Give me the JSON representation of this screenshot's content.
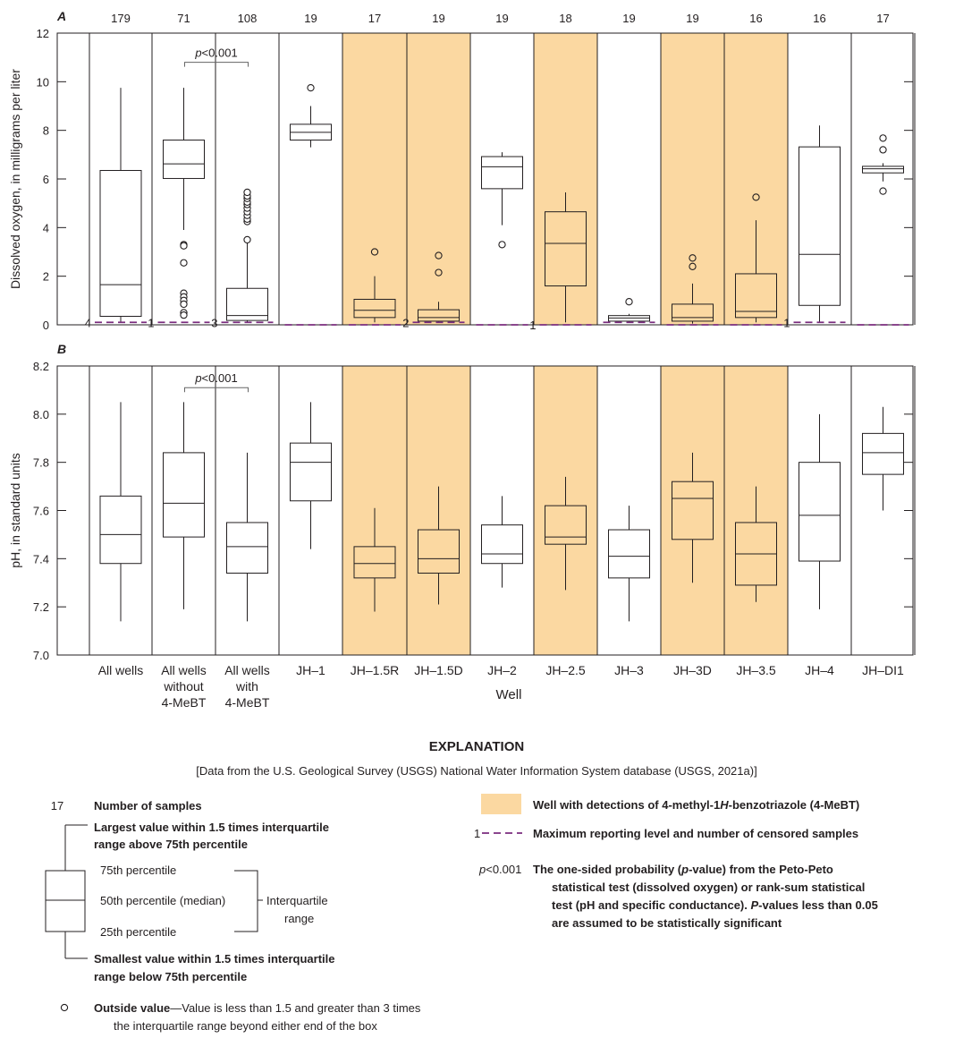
{
  "colors": {
    "detect_fill": "#fbd8a1",
    "reporting_level": "#7b2d7f",
    "box_stroke": "#231f20",
    "frame": "#231f20"
  },
  "chart_data": [
    {
      "panel": "A",
      "type": "box",
      "ylabel": "Dissolved oxygen, in milligrams per liter",
      "ylim": [
        0,
        12
      ],
      "yticks": [
        0,
        2,
        4,
        6,
        8,
        10,
        12
      ],
      "categories": [
        "All wells",
        "All wells without 4-MeBT",
        "All wells with 4-MeBT",
        "JH–1",
        "JH–1.5R",
        "JH–1.5D",
        "JH–2",
        "JH–2.5",
        "JH–3",
        "JH–3D",
        "JH–3.5",
        "JH–4",
        "JH–DI1"
      ],
      "n": [
        "179",
        "71",
        "108",
        "19",
        "17",
        "19",
        "19",
        "18",
        "19",
        "19",
        "16",
        "16",
        "17"
      ],
      "detections": [
        false,
        false,
        false,
        false,
        true,
        true,
        false,
        true,
        false,
        true,
        true,
        false,
        false
      ],
      "boxes": [
        {
          "whisker_low": 0.1,
          "q1": 0.35,
          "median": 1.65,
          "q3": 6.35,
          "whisker_high": 9.75,
          "outliers": []
        },
        {
          "whisker_low": 3.9,
          "q1": 6.02,
          "median": 6.62,
          "q3": 7.6,
          "whisker_high": 9.75,
          "outliers": [
            3.3,
            3.25,
            2.55,
            1.3,
            1.15,
            1.0,
            0.85,
            0.5,
            0.4
          ]
        },
        {
          "whisker_low": 0.1,
          "q1": 0.18,
          "median": 0.38,
          "q3": 1.5,
          "whisker_high": 3.4,
          "outliers": [
            3.5,
            4.25,
            4.35,
            4.5,
            4.65,
            4.8,
            4.95,
            5.05,
            5.2,
            5.3,
            5.45
          ]
        },
        {
          "whisker_low": 7.3,
          "q1": 7.6,
          "median": 7.92,
          "q3": 8.25,
          "whisker_high": 9.0,
          "outliers": [
            9.75
          ]
        },
        {
          "whisker_low": 0.1,
          "q1": 0.3,
          "median": 0.6,
          "q3": 1.05,
          "whisker_high": 2.0,
          "outliers": [
            3.0
          ]
        },
        {
          "whisker_low": 0.1,
          "q1": 0.15,
          "median": 0.3,
          "q3": 0.62,
          "whisker_high": 0.95,
          "outliers": [
            2.15,
            2.85
          ]
        },
        {
          "whisker_low": 4.1,
          "q1": 5.6,
          "median": 6.5,
          "q3": 6.92,
          "whisker_high": 7.1,
          "outliers": [
            3.3
          ]
        },
        {
          "whisker_low": 0.1,
          "q1": 1.6,
          "median": 3.35,
          "q3": 4.65,
          "whisker_high": 5.45,
          "outliers": []
        },
        {
          "whisker_low": 0.1,
          "q1": 0.15,
          "median": 0.28,
          "q3": 0.38,
          "whisker_high": 0.45,
          "outliers": [
            0.95
          ]
        },
        {
          "whisker_low": 0.05,
          "q1": 0.15,
          "median": 0.3,
          "q3": 0.85,
          "whisker_high": 1.7,
          "outliers": [
            2.4,
            2.75
          ]
        },
        {
          "whisker_low": 0.1,
          "q1": 0.3,
          "median": 0.55,
          "q3": 2.1,
          "whisker_high": 4.3,
          "outliers": [
            5.25
          ]
        },
        {
          "whisker_low": 0.1,
          "q1": 0.8,
          "median": 2.9,
          "q3": 7.32,
          "whisker_high": 8.2,
          "outliers": []
        },
        {
          "whisker_low": 5.9,
          "q1": 6.25,
          "median": 6.42,
          "q3": 6.52,
          "whisker_high": 6.65,
          "outliers": [
            5.5,
            7.2,
            7.68
          ]
        }
      ],
      "reporting_levels": [
        {
          "index": 0,
          "value": 0.1,
          "count": "4"
        },
        {
          "index": 1,
          "value": 0.1,
          "count": "1"
        },
        {
          "index": 2,
          "value": 0.1,
          "count": "3"
        },
        {
          "index": 3,
          "value": 0.0,
          "count": ""
        },
        {
          "index": 4,
          "value": 0.0,
          "count": ""
        },
        {
          "index": 5,
          "value": 0.1,
          "count": "2"
        },
        {
          "index": 6,
          "value": 0.0,
          "count": ""
        },
        {
          "index": 7,
          "value": 0.0,
          "count": "1"
        },
        {
          "index": 8,
          "value": 0.1,
          "count": ""
        },
        {
          "index": 9,
          "value": 0.0,
          "count": ""
        },
        {
          "index": 10,
          "value": 0.0,
          "count": ""
        },
        {
          "index": 11,
          "value": 0.1,
          "count": "1"
        },
        {
          "index": 12,
          "value": 0.0,
          "count": ""
        }
      ],
      "pvalue_bracket": {
        "from": 1,
        "to": 2,
        "level": 10.8,
        "label": "p<0.001"
      }
    },
    {
      "panel": "B",
      "type": "box",
      "ylabel": "pH, in standard units",
      "ylim": [
        7.0,
        8.2
      ],
      "yticks": [
        "7.0",
        "7.2",
        "7.4",
        "7.6",
        "7.8",
        "8.0",
        "8.2"
      ],
      "xlabel": "Well",
      "categories": [
        "All wells",
        "All wells without 4-MeBT",
        "All wells with 4-MeBT",
        "JH–1",
        "JH–1.5R",
        "JH–1.5D",
        "JH–2",
        "JH–2.5",
        "JH–3",
        "JH–3D",
        "JH–3.5",
        "JH–4",
        "JH–DI1"
      ],
      "detections": [
        false,
        false,
        false,
        false,
        true,
        true,
        false,
        true,
        false,
        true,
        true,
        false,
        false
      ],
      "boxes": [
        {
          "whisker_low": 7.14,
          "q1": 7.38,
          "median": 7.5,
          "q3": 7.66,
          "whisker_high": 8.05,
          "outliers": []
        },
        {
          "whisker_low": 7.19,
          "q1": 7.49,
          "median": 7.63,
          "q3": 7.84,
          "whisker_high": 8.05,
          "outliers": []
        },
        {
          "whisker_low": 7.14,
          "q1": 7.34,
          "median": 7.45,
          "q3": 7.55,
          "whisker_high": 7.84,
          "outliers": []
        },
        {
          "whisker_low": 7.44,
          "q1": 7.64,
          "median": 7.8,
          "q3": 7.88,
          "whisker_high": 8.05,
          "outliers": []
        },
        {
          "whisker_low": 7.18,
          "q1": 7.32,
          "median": 7.38,
          "q3": 7.45,
          "whisker_high": 7.61,
          "outliers": []
        },
        {
          "whisker_low": 7.21,
          "q1": 7.34,
          "median": 7.4,
          "q3": 7.52,
          "whisker_high": 7.7,
          "outliers": []
        },
        {
          "whisker_low": 7.28,
          "q1": 7.38,
          "median": 7.42,
          "q3": 7.54,
          "whisker_high": 7.66,
          "outliers": []
        },
        {
          "whisker_low": 7.27,
          "q1": 7.46,
          "median": 7.49,
          "q3": 7.62,
          "whisker_high": 7.74,
          "outliers": []
        },
        {
          "whisker_low": 7.14,
          "q1": 7.32,
          "median": 7.41,
          "q3": 7.52,
          "whisker_high": 7.62,
          "outliers": []
        },
        {
          "whisker_low": 7.3,
          "q1": 7.48,
          "median": 7.65,
          "q3": 7.72,
          "whisker_high": 7.84,
          "outliers": []
        },
        {
          "whisker_low": 7.22,
          "q1": 7.29,
          "median": 7.42,
          "q3": 7.55,
          "whisker_high": 7.7,
          "outliers": []
        },
        {
          "whisker_low": 7.19,
          "q1": 7.39,
          "median": 7.58,
          "q3": 7.8,
          "whisker_high": 8.0,
          "outliers": []
        },
        {
          "whisker_low": 7.6,
          "q1": 7.75,
          "median": 7.84,
          "q3": 7.92,
          "whisker_high": 8.03,
          "outliers": []
        }
      ],
      "pvalue_bracket": {
        "from": 1,
        "to": 2,
        "level": 8.11,
        "label": "p<0.001"
      }
    }
  ],
  "x_tick_labels": [
    [
      "All wells"
    ],
    [
      "All wells",
      "without",
      "4-MeBT"
    ],
    [
      "All wells",
      "with",
      "4-MeBT"
    ],
    [
      "JH–1"
    ],
    [
      "JH–1.5R"
    ],
    [
      "JH–1.5D"
    ],
    [
      "JH–2"
    ],
    [
      "JH–2.5"
    ],
    [
      "JH–3"
    ],
    [
      "JH–3D"
    ],
    [
      "JH–3.5"
    ],
    [
      "JH–4"
    ],
    [
      "JH–DI1"
    ]
  ],
  "explanation": {
    "title": "EXPLANATION",
    "source_note": "[Data from the U.S. Geological Survey (USGS) National Water Information System database (USGS, 2021a)]",
    "n_example": "17",
    "n_label": "Number of samples",
    "largest_line1": "Largest value within 1.5 times interquartile",
    "largest_line2": "range above 75th percentile",
    "p75": "75th percentile",
    "p50": "50th percentile (median)",
    "p25": "25th percentile",
    "iqr_line1": "Interquartile",
    "iqr_line2": "range",
    "smallest_line1": "Smallest value within 1.5 times interquartile",
    "smallest_line2": "range below 75th percentile",
    "outside_bold": "Outside value",
    "outside_line1": "—Value is less than 1.5 and greater than 3 times",
    "outside_line2": "the interquartile range beyond either end of the box",
    "detect_label_a": "Well with detections of 4-methyl-1",
    "detect_label_italic": "H",
    "detect_label_b": "-benzotriazole (4-MeBT)",
    "rl_example": "1",
    "rl_label": "Maximum reporting level and number of censored samples",
    "p_example_italic": "p",
    "p_example_rest": "<0.001",
    "p_line1_a": "The one-sided probability (",
    "p_line1_italic": "p",
    "p_line1_b": "-value) from the Peto-Peto",
    "p_line2": "statistical test (dissolved oxygen) or rank-sum statistical",
    "p_line3_a": "test (pH and specific conductance). ",
    "p_line3_italic": "P",
    "p_line3_b": "-values less than 0.05",
    "p_line4": "are assumed to be statistically significant"
  }
}
